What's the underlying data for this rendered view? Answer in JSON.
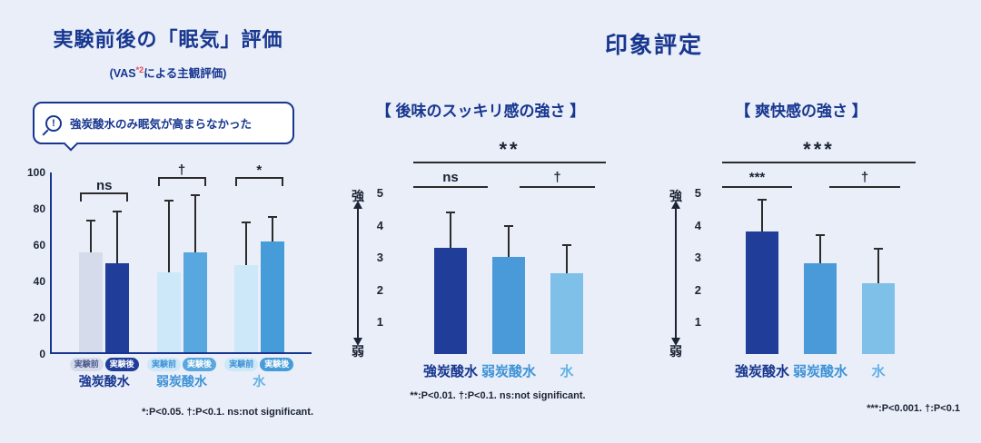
{
  "page": {
    "background": "#e9eef9",
    "accent_navy": "#17368f",
    "footnote_red": "#e5484d"
  },
  "left_panel": {
    "title": "実験前後の「眠気」評価",
    "subtitle_prefix": "(VAS",
    "subtitle_sup": "*2",
    "subtitle_suffix": "による主観評価)",
    "callout_text": "強炭酸水のみ眠気が高まらなかった"
  },
  "right_panel": {
    "title": "印象評定"
  },
  "chart_data": [
    {
      "type": "bar",
      "title": "実験前後の「眠気」評価",
      "subtitle": "(VAS*2による主観評価)",
      "annotation": "強炭酸水のみ眠気が高まらなかった",
      "categories": [
        "強炭酸水",
        "弱炭酸水",
        "水"
      ],
      "category_colors": [
        "#17368f",
        "#3e93d6",
        "#62b1e5"
      ],
      "series": [
        {
          "name": "実験前",
          "values": [
            55,
            44,
            48
          ],
          "error_tops": [
            73,
            84,
            72
          ],
          "bar_colors": [
            "#d6dbeb",
            "#cde8f8",
            "#cde8f8"
          ],
          "pill_text_colors": [
            "#4a5a8f",
            "#3e93d6",
            "#3e93d6"
          ]
        },
        {
          "name": "実験後",
          "values": [
            49,
            55,
            61
          ],
          "error_tops": [
            78,
            87,
            75
          ],
          "bar_colors": [
            "#1f3d99",
            "#58a7de",
            "#469bd9"
          ],
          "pill_text_colors": [
            "#ffffff",
            "#ffffff",
            "#ffffff"
          ]
        }
      ],
      "ylim": [
        0,
        100
      ],
      "yticks": [
        0,
        20,
        40,
        60,
        80,
        100
      ],
      "grid": false,
      "significance_by_group": [
        "ns",
        "†",
        "*"
      ],
      "footnote": "*:P<0.05. †:P<0.1. ns:not significant."
    },
    {
      "type": "bar",
      "title": "【 後味のスッキリ感の強さ 】",
      "categories": [
        "強炭酸水",
        "弱炭酸水",
        "水"
      ],
      "category_colors": [
        "#17368f",
        "#3e93d6",
        "#62b1e5"
      ],
      "values": [
        3.3,
        3.0,
        2.5
      ],
      "error_tops": [
        4.4,
        4.0,
        3.4
      ],
      "bar_colors": [
        "#1f3d99",
        "#4a9ad9",
        "#7fc0e8"
      ],
      "ylim": [
        0,
        5
      ],
      "yticks": [
        1,
        2,
        3,
        4,
        5
      ],
      "grid": false,
      "ylabel_top": "強",
      "ylabel_bottom": "弱",
      "significance": {
        "overall": "**",
        "pair_left": "ns",
        "pair_right": "†"
      },
      "footnote": "**:P<0.01. †:P<0.1. ns:not significant."
    },
    {
      "type": "bar",
      "title": "【 爽快感の強さ 】",
      "categories": [
        "強炭酸水",
        "弱炭酸水",
        "水"
      ],
      "category_colors": [
        "#17368f",
        "#3e93d6",
        "#62b1e5"
      ],
      "values": [
        3.8,
        2.8,
        2.2
      ],
      "error_tops": [
        4.8,
        3.7,
        3.3
      ],
      "bar_colors": [
        "#1f3d99",
        "#4a9ad9",
        "#7fc0e8"
      ],
      "ylim": [
        0,
        5
      ],
      "yticks": [
        1,
        2,
        3,
        4,
        5
      ],
      "grid": false,
      "ylabel_top": "強",
      "ylabel_bottom": "弱",
      "significance": {
        "overall": "***",
        "pair_left": "***",
        "pair_right": "†"
      },
      "footnote": "***:P<0.001. †:P<0.1"
    }
  ]
}
